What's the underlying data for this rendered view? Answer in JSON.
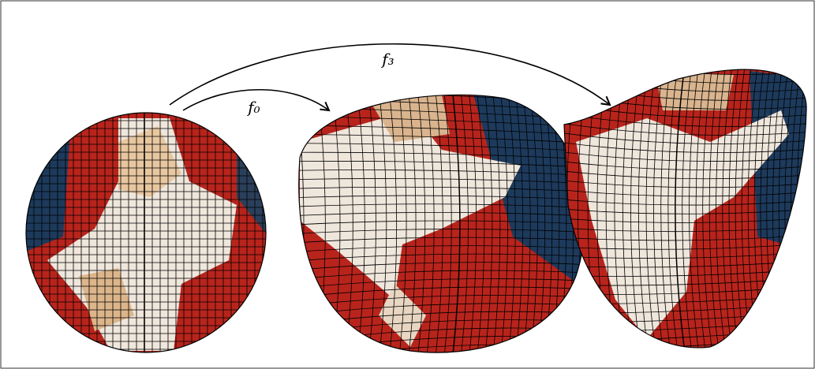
{
  "arrows": [
    {
      "label": "f₀"
    },
    {
      "label": "f₃"
    }
  ]
}
